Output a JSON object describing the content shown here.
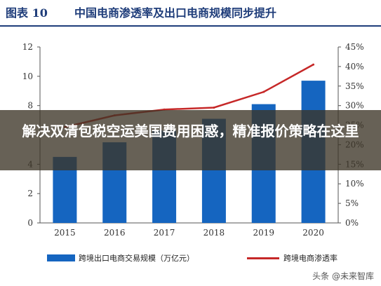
{
  "header": {
    "figure_label": "图表 10",
    "title": "中国电商渗透率及出口电商规模同步提升"
  },
  "chart_data": {
    "type": "bar",
    "categories": [
      "2015",
      "2016",
      "2017",
      "2018",
      "2019",
      "2020"
    ],
    "series": [
      {
        "name": "跨境出口电商交易规模（万亿元）",
        "type": "bar",
        "axis": "left",
        "color": "#1565c0",
        "values": [
          4.5,
          5.5,
          6.3,
          7.1,
          8.1,
          9.7
        ]
      },
      {
        "name": "跨境电商渗透率",
        "type": "line",
        "axis": "right",
        "color": "#c62828",
        "values": [
          24.5,
          27.5,
          29.0,
          29.5,
          33.5,
          40.5
        ]
      }
    ],
    "y_left": {
      "lim": [
        0,
        12
      ],
      "ticks": [
        "0",
        "2",
        "4",
        "6",
        "8",
        "10",
        "12"
      ]
    },
    "y_right": {
      "lim": [
        0,
        45
      ],
      "ticks": [
        "0%",
        "5%",
        "10%",
        "15%",
        "20%",
        "25%",
        "30%",
        "35%",
        "40%",
        "45%"
      ]
    },
    "grid": false,
    "legend_position": "bottom"
  },
  "overlay": {
    "banner_text": "解决双清包税空运美国费用困惑，精准报价策略在这里"
  },
  "watermark": "头条 @未来智库"
}
